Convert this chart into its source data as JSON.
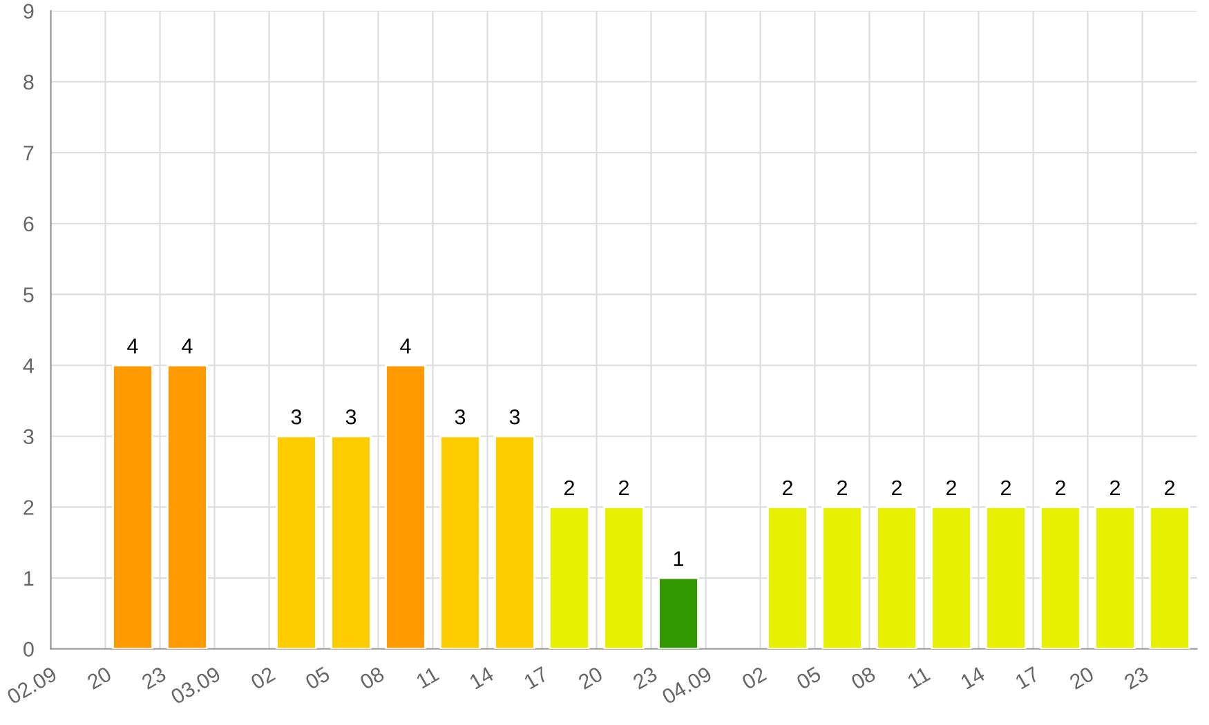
{
  "chart_data": {
    "type": "bar",
    "categories": [
      "02.09",
      "20",
      "23",
      "03.09",
      "02",
      "05",
      "08",
      "11",
      "14",
      "17",
      "20",
      "23",
      "04.09",
      "02",
      "05",
      "08",
      "11",
      "14",
      "17",
      "20",
      "23"
    ],
    "values": [
      null,
      4,
      4,
      null,
      3,
      3,
      4,
      3,
      3,
      2,
      2,
      1,
      null,
      2,
      2,
      2,
      2,
      2,
      2,
      2,
      2
    ],
    "colors": [
      "#008000",
      "#ff9900",
      "#ff9900",
      "#008000",
      "#ffcc00",
      "#ffcc00",
      "#ff9900",
      "#ffcc00",
      "#ffcc00",
      "#e6f000",
      "#e6f000",
      "#339900",
      "#008000",
      "#e6f000",
      "#e6f000",
      "#e6f000",
      "#e6f000",
      "#e6f000",
      "#e6f000",
      "#e6f000",
      "#e6f000"
    ],
    "ylim": [
      0,
      9
    ],
    "yticks": [
      0,
      1,
      2,
      3,
      4,
      5,
      6,
      7,
      8,
      9
    ],
    "grid": true,
    "data_labels": true
  }
}
